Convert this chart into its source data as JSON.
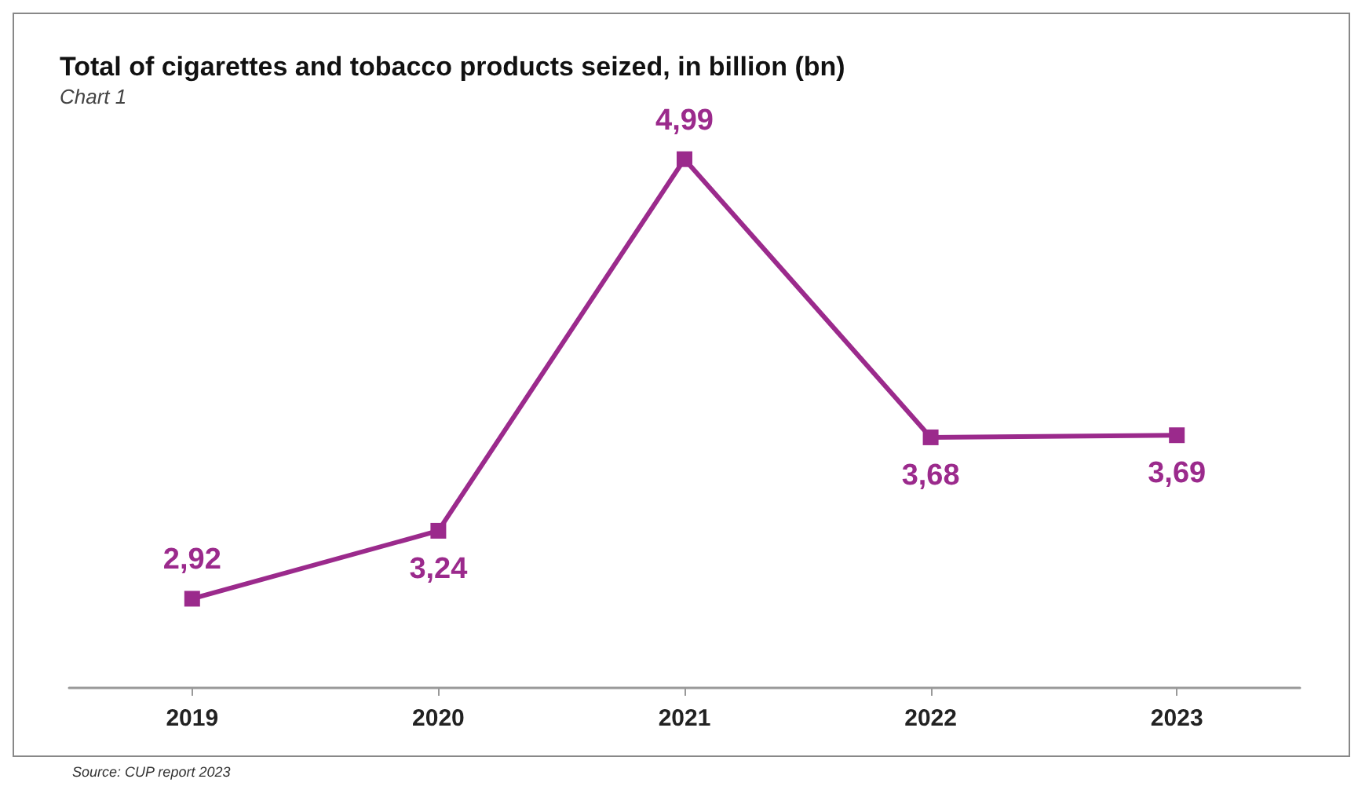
{
  "chart_data": {
    "type": "line",
    "title": "Total of cigarettes and tobacco products seized, in billion (bn)",
    "subtitle": "Chart 1",
    "categories": [
      "2019",
      "2020",
      "2021",
      "2022",
      "2023"
    ],
    "series": [
      {
        "color": "#9b2a8c",
        "values": [
          2.92,
          3.24,
          4.99,
          3.68,
          3.69
        ],
        "value_labels": [
          "2,92",
          "3,24",
          "4,99",
          "3,68",
          "3,69"
        ]
      }
    ],
    "marker": "square",
    "line_style": "solid",
    "grid": false,
    "tick_labels": "x",
    "annotations": [
      "Source: CUP report 2023"
    ]
  }
}
